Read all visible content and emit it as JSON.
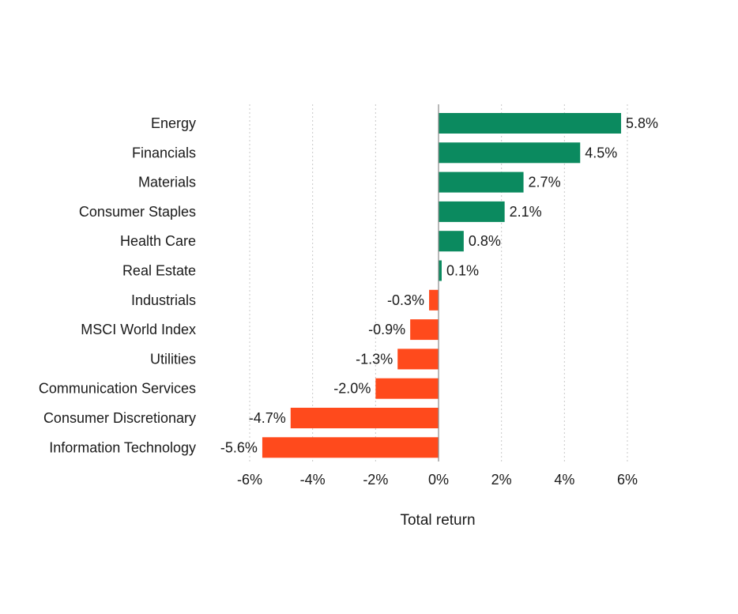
{
  "chart_data": {
    "type": "bar",
    "orientation": "horizontal",
    "title": "",
    "xlabel": "Total return",
    "ylabel": "",
    "categories": [
      "Energy",
      "Financials",
      "Materials",
      "Consumer Staples",
      "Health Care",
      "Real Estate",
      "Industrials",
      "MSCI World Index",
      "Utilities",
      "Communication Services",
      "Consumer Discretionary",
      "Information Technology"
    ],
    "values": [
      5.8,
      4.5,
      2.7,
      2.1,
      0.8,
      0.1,
      -0.3,
      -0.9,
      -1.3,
      -2.0,
      -4.7,
      -5.6
    ],
    "value_labels": [
      "5.8%",
      "4.5%",
      "2.7%",
      "2.1%",
      "0.8%",
      "0.1%",
      "-0.3%",
      "-0.9%",
      "-1.3%",
      "-2.0%",
      "-4.7%",
      "-5.6%"
    ],
    "xlim": [
      -6,
      6
    ],
    "xticks": [
      -6,
      -4,
      -2,
      0,
      2,
      4,
      6
    ],
    "xtick_labels": [
      "-6%",
      "-4%",
      "-2%",
      "0%",
      "2%",
      "4%",
      "6%"
    ],
    "grid": "vertical dotted",
    "colors": {
      "positive": "#0b8a5f",
      "negative": "#ff4a1c",
      "grid": "#c8c8c8",
      "zero_line": "#8a8a8a",
      "text": "#1a1a1a"
    }
  }
}
